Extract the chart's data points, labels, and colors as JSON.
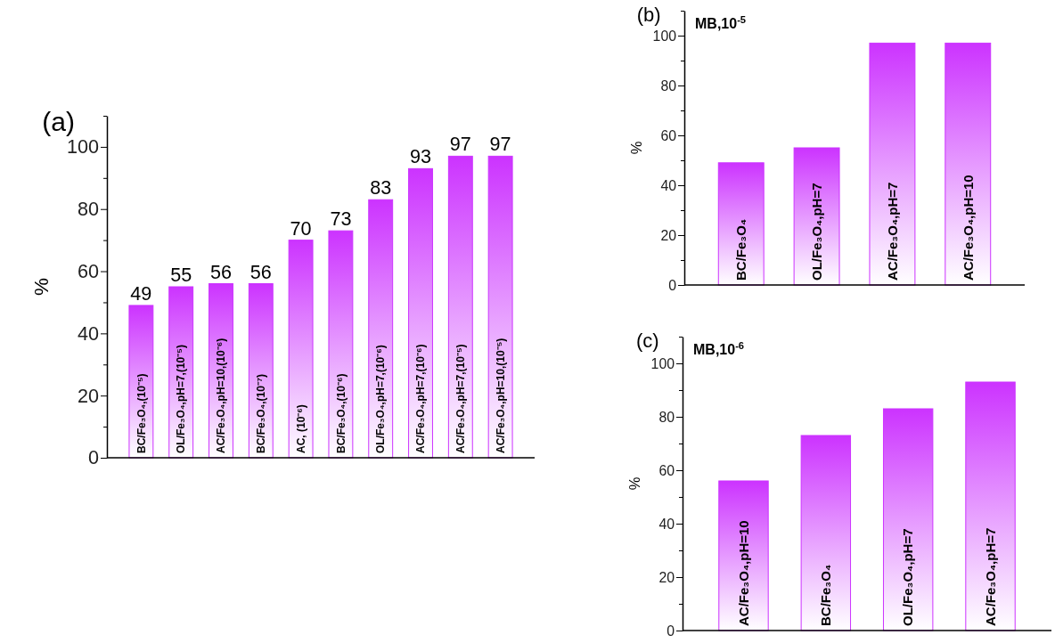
{
  "chart_data": [
    {
      "type": "bar",
      "title": "(a)",
      "ylabel": "%",
      "categories": [
        "BC/Fe₃O₄,(10⁻⁵)",
        "OL/Fe₃O₄,pH=7,(10⁻⁵)",
        "AC/Fe₃O₄,pH=10,(10⁻⁶)",
        "BC/Fe₃O₄,(10⁻⁷)",
        "AC, (10⁻⁶)",
        "BC/Fe₃O₄,(10⁻⁶)",
        "OL/Fe₃O₄,pH=7,(10⁻⁶)",
        "AC/Fe₃O₄,pH=7,(10⁻⁶)",
        "AC/Fe₃O₄,pH=7,(10⁻⁵)",
        "AC/Fe₃O₄,pH=10,(10⁻⁵)"
      ],
      "values": [
        49,
        55,
        56,
        56,
        70,
        73,
        83,
        93,
        97,
        97
      ],
      "color": "#cc33ff",
      "data_labels": true,
      "ylim": [
        0,
        110
      ],
      "yticks": [
        0,
        {
          "value": 10,
          "label": null
        },
        20,
        {
          "value": 30,
          "label": null
        },
        40,
        {
          "value": 50,
          "label": null
        },
        60,
        {
          "value": 70,
          "label": null
        },
        80,
        {
          "value": 90,
          "label": null
        },
        100,
        {
          "value": 110,
          "label": null
        }
      ],
      "grid": false
    },
    {
      "type": "bar",
      "title": "(b)",
      "subtitle": "MB,10$^{-5}$",
      "ylabel": "%",
      "categories": [
        "BC/Fe₃O₄",
        "OL/Fe₃O₄,pH=7",
        "AC/Fe₃O₄,pH=7",
        "AC/Fe₃O₄,pH=10"
      ],
      "values": [
        49,
        55,
        97,
        97
      ],
      "color": "#cc33ff",
      "ylim": [
        0,
        110
      ],
      "yticks": [
        0,
        {
          "value": 10,
          "label": null
        },
        20,
        {
          "value": 30,
          "label": null
        },
        40,
        {
          "value": 50,
          "label": null
        },
        60,
        {
          "value": 70,
          "label": null
        },
        80,
        {
          "value": 90,
          "label": null
        },
        100,
        {
          "value": 110,
          "label": null
        }
      ],
      "grid": false
    },
    {
      "type": "bar",
      "title": "(c)",
      "subtitle": "MB,10$^{-6}$",
      "ylabel": "%",
      "categories": [
        "AC/Fe₃O₄,pH=10",
        "BC/Fe₃O₄",
        "OL/Fe₃O₄,pH=7",
        "AC/Fe₃O₄,pH=7"
      ],
      "values": [
        56,
        73,
        83,
        93
      ],
      "color": "#cc33ff",
      "ylim": [
        0,
        110
      ],
      "yticks": [
        0,
        {
          "value": 10,
          "label": null
        },
        20,
        {
          "value": 30,
          "label": null
        },
        40,
        {
          "value": 50,
          "label": null
        },
        60,
        {
          "value": 70,
          "label": null
        },
        80,
        {
          "value": 90,
          "label": null
        },
        100,
        {
          "value": 110,
          "label": null
        }
      ],
      "grid": false
    }
  ]
}
